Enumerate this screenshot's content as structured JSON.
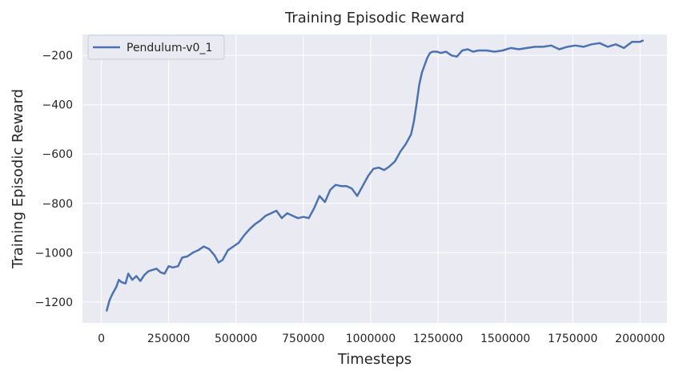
{
  "chart_data": {
    "type": "line",
    "title": "Training Episodic Reward",
    "xlabel": "Timesteps",
    "ylabel": "Training Episodic Reward",
    "xlim": [
      -70000,
      2100000
    ],
    "ylim": [
      -1285,
      -115
    ],
    "xticks": [
      0,
      250000,
      500000,
      750000,
      1000000,
      1250000,
      1500000,
      1750000,
      2000000
    ],
    "xtick_labels": [
      "0",
      "250000",
      "500000",
      "750000",
      "1000000",
      "1250000",
      "1500000",
      "1750000",
      "2000000"
    ],
    "yticks": [
      -1200,
      -1000,
      -800,
      -600,
      -400,
      -200
    ],
    "ytick_labels": [
      "−1200",
      "−1000",
      "−800",
      "−600",
      "−400",
      "−200"
    ],
    "grid": true,
    "legend_position": "top-left",
    "colors": {
      "background": "#eaeaf2",
      "grid": "#ffffff",
      "series": "#4c72b0"
    },
    "series": [
      {
        "name": "Pendulum-v0_1",
        "x": [
          20000,
          30000,
          40000,
          55000,
          65000,
          75000,
          90000,
          100000,
          115000,
          130000,
          145000,
          160000,
          175000,
          190000,
          205000,
          220000,
          235000,
          250000,
          265000,
          285000,
          300000,
          320000,
          340000,
          360000,
          380000,
          400000,
          420000,
          435000,
          450000,
          470000,
          490000,
          510000,
          530000,
          550000,
          570000,
          590000,
          610000,
          630000,
          650000,
          670000,
          690000,
          710000,
          730000,
          750000,
          770000,
          790000,
          810000,
          830000,
          850000,
          870000,
          890000,
          910000,
          930000,
          950000,
          970000,
          990000,
          1010000,
          1030000,
          1050000,
          1070000,
          1090000,
          1110000,
          1130000,
          1150000,
          1160000,
          1170000,
          1180000,
          1190000,
          1200000,
          1210000,
          1220000,
          1230000,
          1245000,
          1260000,
          1280000,
          1300000,
          1320000,
          1340000,
          1360000,
          1380000,
          1400000,
          1430000,
          1460000,
          1490000,
          1520000,
          1550000,
          1580000,
          1610000,
          1640000,
          1670000,
          1700000,
          1730000,
          1760000,
          1790000,
          1820000,
          1850000,
          1880000,
          1910000,
          1940000,
          1970000,
          2000000,
          2010000
        ],
        "y": [
          -1235,
          -1195,
          -1170,
          -1140,
          -1110,
          -1120,
          -1125,
          -1085,
          -1110,
          -1095,
          -1115,
          -1090,
          -1075,
          -1070,
          -1065,
          -1080,
          -1085,
          -1055,
          -1060,
          -1055,
          -1020,
          -1015,
          -1000,
          -990,
          -975,
          -985,
          -1010,
          -1040,
          -1030,
          -990,
          -975,
          -960,
          -930,
          -905,
          -885,
          -870,
          -850,
          -840,
          -830,
          -860,
          -840,
          -850,
          -860,
          -855,
          -860,
          -820,
          -770,
          -795,
          -745,
          -725,
          -730,
          -730,
          -740,
          -770,
          -730,
          -690,
          -660,
          -655,
          -665,
          -650,
          -630,
          -590,
          -560,
          -520,
          -470,
          -400,
          -320,
          -270,
          -240,
          -210,
          -190,
          -185,
          -185,
          -190,
          -185,
          -200,
          -205,
          -180,
          -175,
          -185,
          -180,
          -180,
          -185,
          -180,
          -170,
          -175,
          -170,
          -165,
          -165,
          -160,
          -175,
          -165,
          -160,
          -165,
          -155,
          -150,
          -165,
          -155,
          -170,
          -145,
          -145,
          -140
        ]
      }
    ]
  }
}
